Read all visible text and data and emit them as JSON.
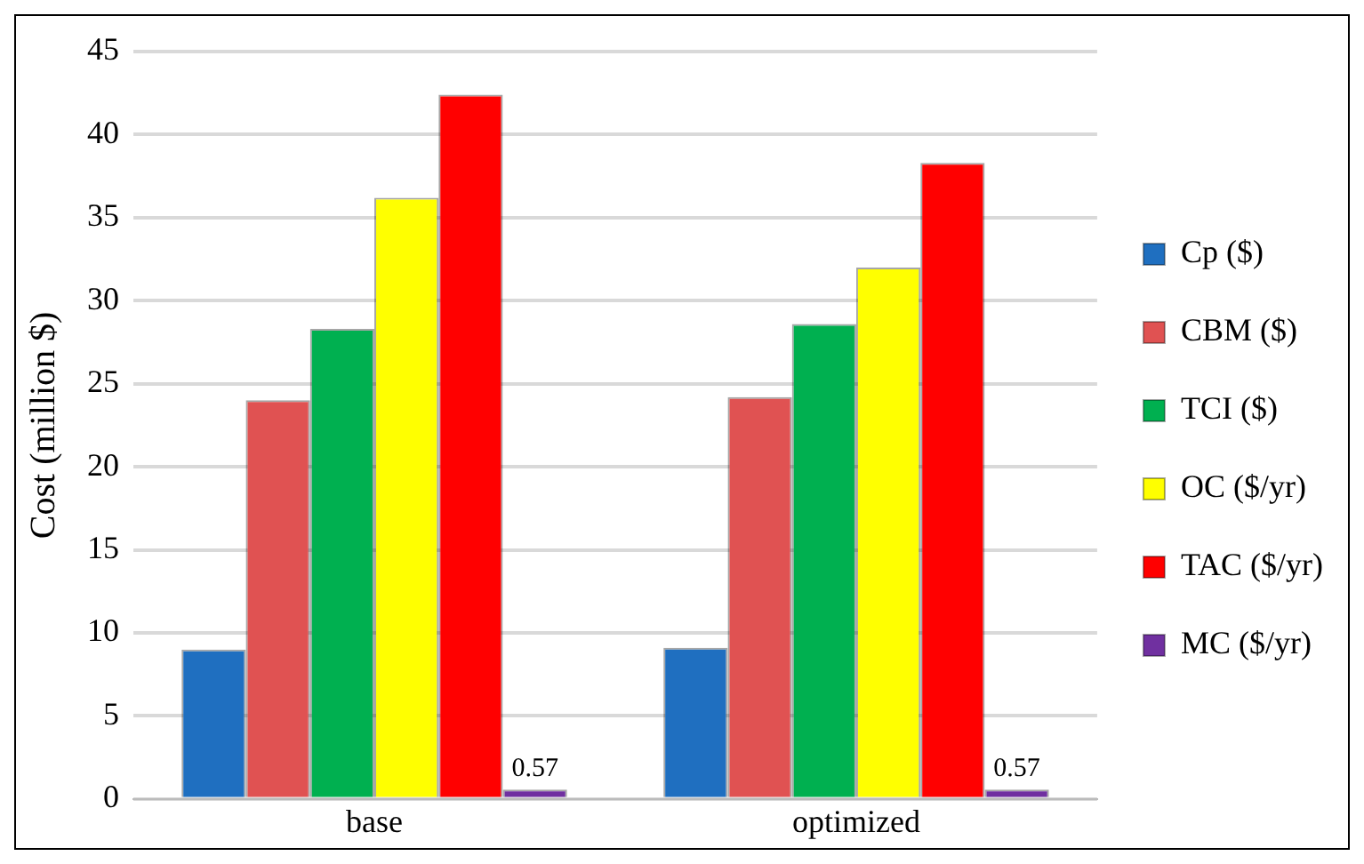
{
  "chart_data": {
    "type": "bar",
    "ylabel": "Cost (million $)",
    "categories": [
      "base",
      "optimized"
    ],
    "series": [
      {
        "name": "Cp ($)",
        "color": "#1f6fc0",
        "values": [
          9.0,
          9.1
        ]
      },
      {
        "name": "CBM ($)",
        "color": "#e05252",
        "values": [
          24.0,
          24.2
        ]
      },
      {
        "name": "TCI ($)",
        "color": "#00b050",
        "values": [
          28.3,
          28.6
        ]
      },
      {
        "name": "OC ($/yr)",
        "color": "#ffff00",
        "values": [
          36.2,
          32.0
        ]
      },
      {
        "name": "TAC ($/yr)",
        "color": "#ff0000",
        "values": [
          42.4,
          38.3
        ]
      },
      {
        "name": "MC ($/yr)",
        "color": "#7030a0",
        "values": [
          0.57,
          0.57
        ],
        "value_labels": [
          "0.57",
          "0.57"
        ]
      }
    ],
    "ylim": [
      0,
      45
    ],
    "yticks": [
      0,
      5,
      10,
      15,
      20,
      25,
      30,
      35,
      40,
      45
    ],
    "grid": "y",
    "legend": "right"
  }
}
